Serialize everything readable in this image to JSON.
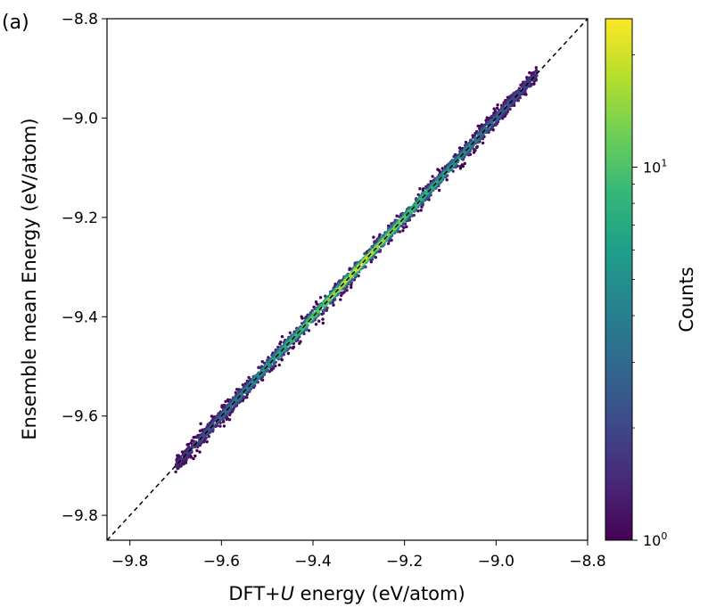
{
  "panel_label": "(a)",
  "chart_data": {
    "type": "scatter",
    "subtype": "hexbin-density parity plot",
    "xlabel_main": "DFT+",
    "xlabel_italic": "U",
    "xlabel_rest": " energy (eV/atom)",
    "ylabel": "Ensemble mean Energy (eV/atom)",
    "xlim": [
      -9.85,
      -8.8
    ],
    "ylim": [
      -9.85,
      -8.8
    ],
    "xticks": [
      -9.8,
      -9.6,
      -9.4,
      -9.2,
      -9.0,
      -8.8
    ],
    "xtick_labels": [
      "−9.8",
      "−9.6",
      "−9.4",
      "−9.2",
      "−9.0",
      "−8.8"
    ],
    "yticks": [
      -9.8,
      -9.6,
      -9.4,
      -9.2,
      -9.0,
      -8.8
    ],
    "ytick_labels": [
      "−9.8",
      "−9.6",
      "−9.4",
      "−9.2",
      "−9.0",
      "−8.8"
    ],
    "reference_line": {
      "from": [
        -9.85,
        -9.85
      ],
      "to": [
        -8.8,
        -8.8
      ],
      "style": "dashed",
      "color": "#000000"
    },
    "point_range": {
      "x": [
        -9.7,
        -8.91
      ],
      "y": [
        -9.7,
        -8.91
      ]
    },
    "grid": false,
    "colorbar": {
      "label": "Counts",
      "scale": "log",
      "range": [
        1,
        25
      ],
      "ticks": [
        1,
        10
      ],
      "tick_labels": [
        {
          "base": "10",
          "exp": "0"
        },
        {
          "base": "10",
          "exp": "1"
        }
      ],
      "colormap": "viridis",
      "colors": [
        "#440154",
        "#482878",
        "#3e4989",
        "#31688e",
        "#26828e",
        "#1f9e89",
        "#35b779",
        "#6ece58",
        "#b5de2b",
        "#fde725"
      ]
    }
  }
}
